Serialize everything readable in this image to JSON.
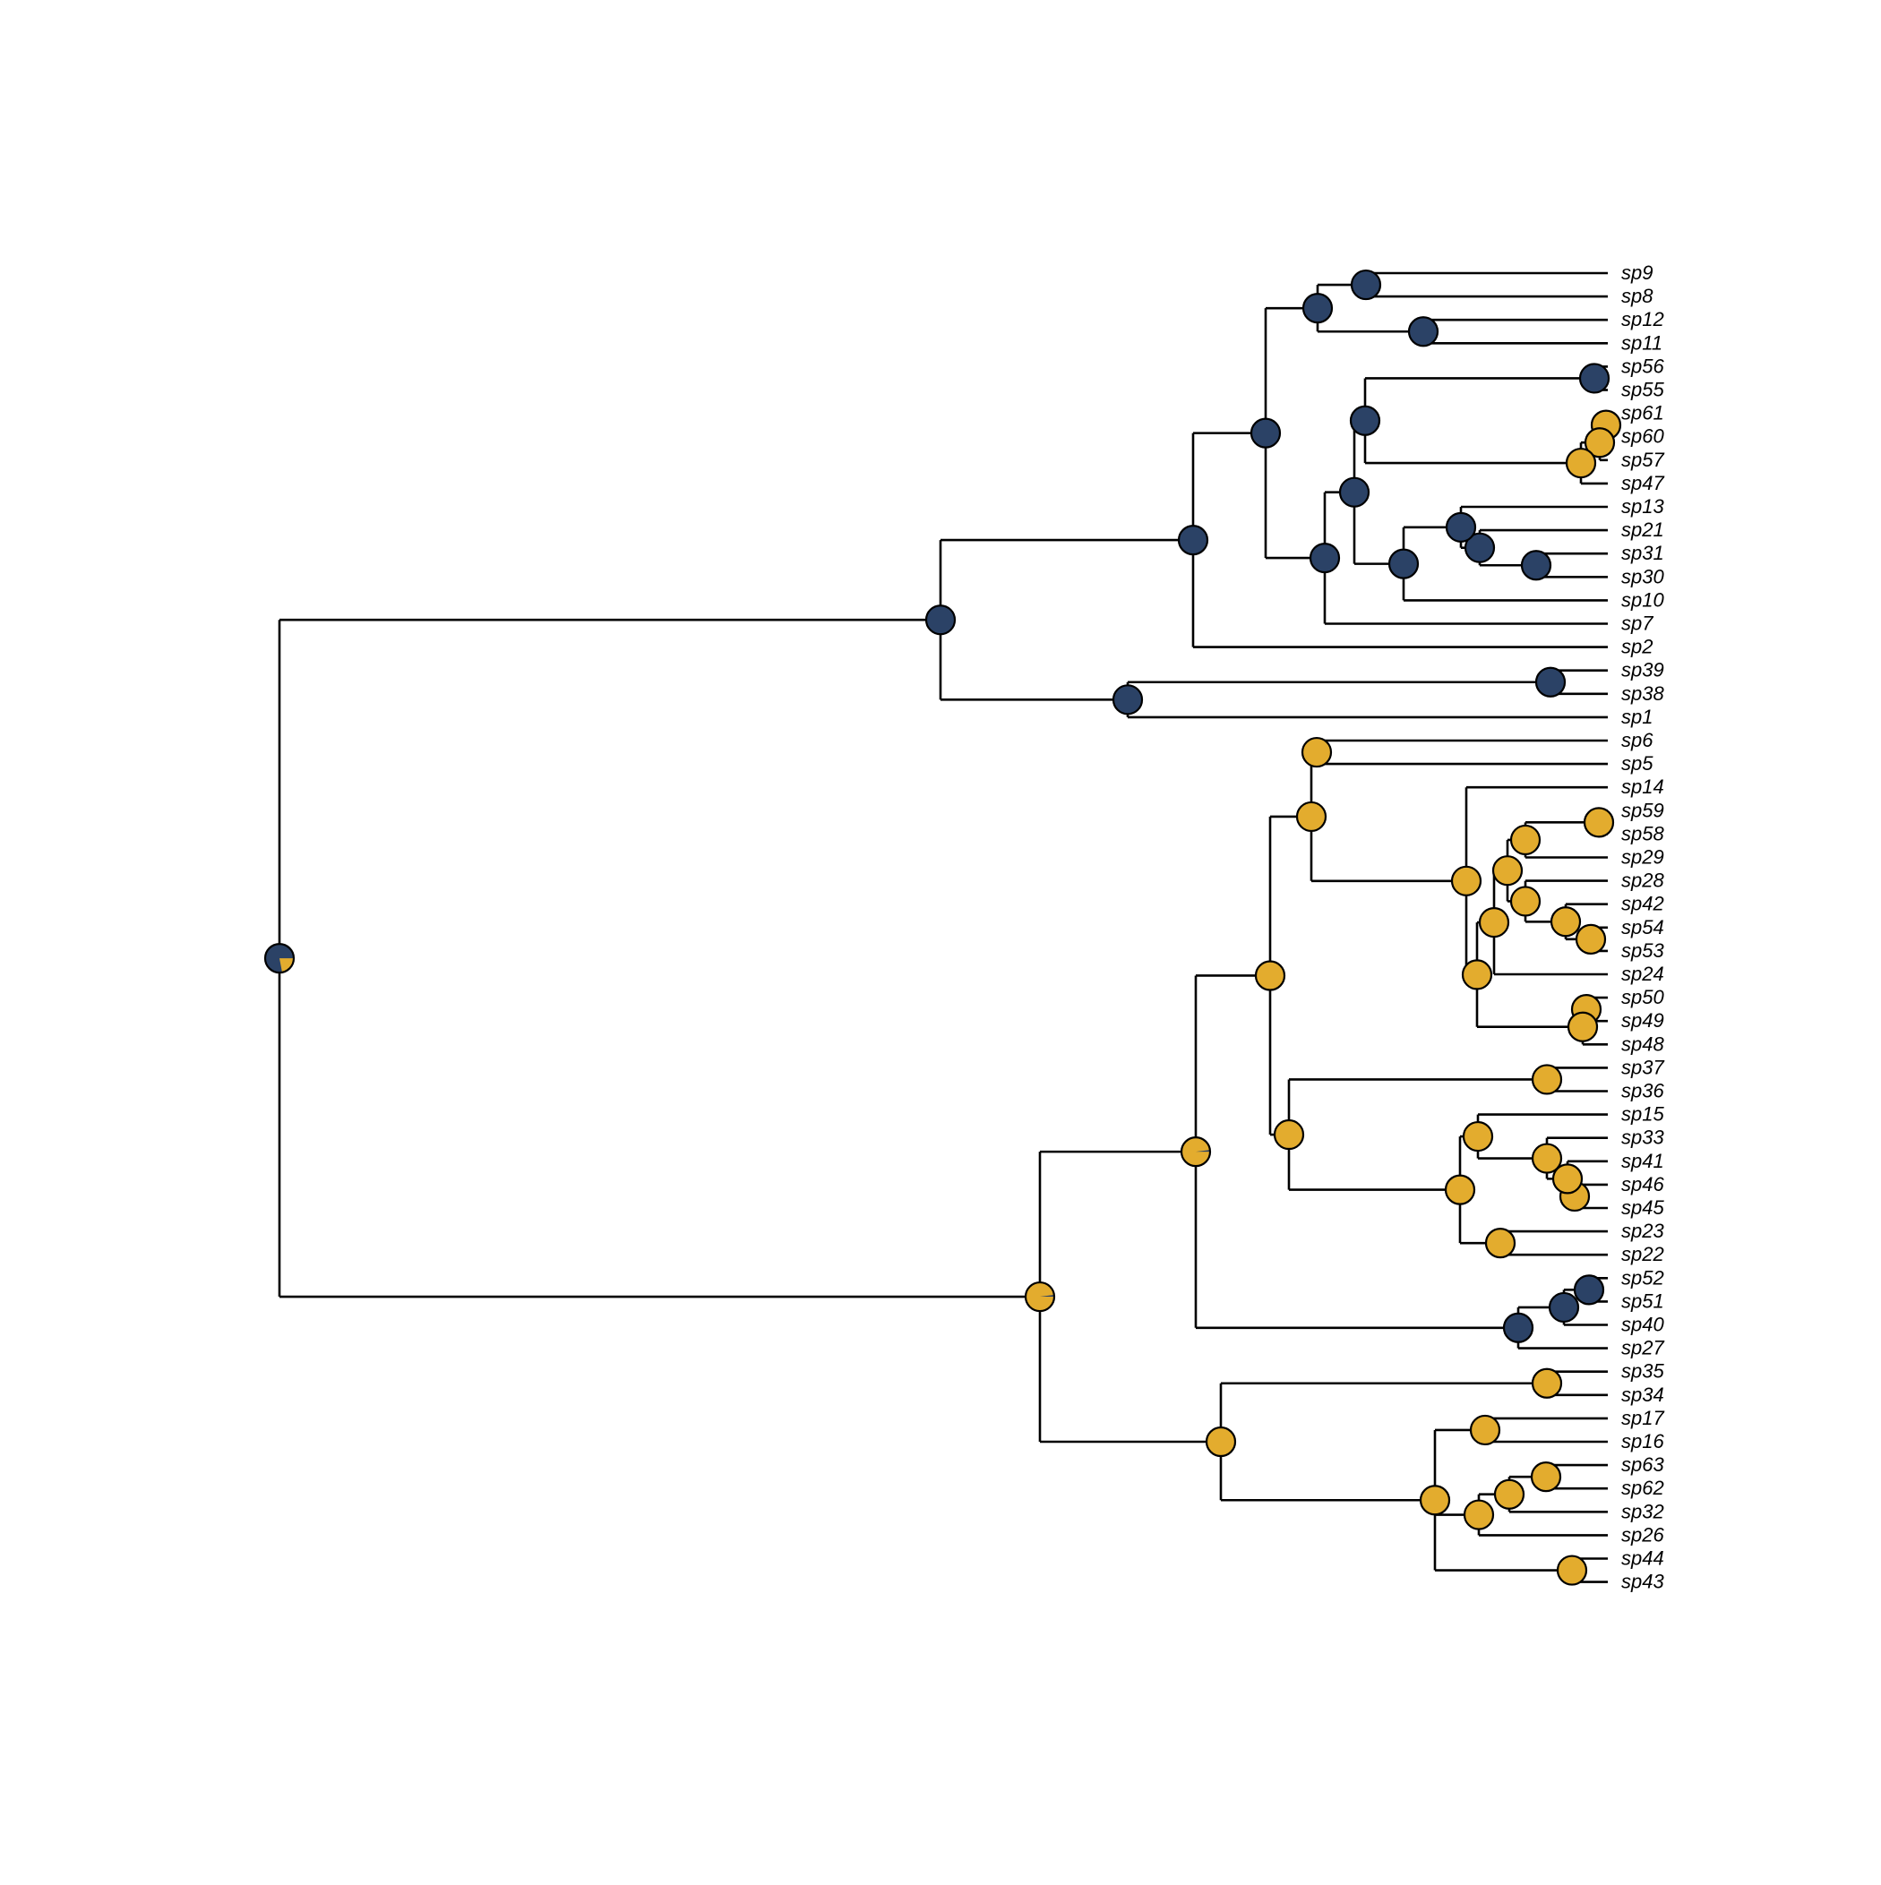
{
  "colors": {
    "state_a": "#2b4266",
    "state_b": "#e3ac2e",
    "line": "#000000"
  },
  "tip_order": [
    "sp9",
    "sp8",
    "sp12",
    "sp11",
    "sp56",
    "sp55",
    "sp61",
    "sp60",
    "sp57",
    "sp47",
    "sp13",
    "sp21",
    "sp31",
    "sp30",
    "sp10",
    "sp7",
    "sp2",
    "sp39",
    "sp38",
    "sp1",
    "sp6",
    "sp5",
    "sp14",
    "sp59",
    "sp58",
    "sp29",
    "sp28",
    "sp42",
    "sp54",
    "sp53",
    "sp24",
    "sp50",
    "sp49",
    "sp48",
    "sp37",
    "sp36",
    "sp15",
    "sp33",
    "sp41",
    "sp46",
    "sp45",
    "sp23",
    "sp22",
    "sp52",
    "sp51",
    "sp40",
    "sp27",
    "sp35",
    "sp34",
    "sp17",
    "sp16",
    "sp63",
    "sp62",
    "sp32",
    "sp26",
    "sp44",
    "sp43"
  ],
  "tree": {
    "n": "root",
    "p": 0.78,
    "c": [
      {
        "n": "A",
        "p": 1.0,
        "c": [
          {
            "n": "A1",
            "p": 1.0,
            "c": [
              {
                "n": "A11",
                "p": 1.0,
                "c": [
                  {
                    "n": "A111",
                    "p": 1.0,
                    "c": [
                      {
                        "n": "A1111",
                        "p": 1.0,
                        "c": [
                          {
                            "t": "sp9"
                          },
                          {
                            "t": "sp8"
                          }
                        ]
                      },
                      {
                        "n": "A1112",
                        "p": 1.0,
                        "c": [
                          {
                            "t": "sp12"
                          },
                          {
                            "t": "sp11"
                          }
                        ]
                      }
                    ]
                  },
                  {
                    "n": "A112",
                    "p": 1.0,
                    "c": [
                      {
                        "n": "A1121",
                        "p": 1.0,
                        "c": [
                          {
                            "n": "A11211",
                            "p": 1.0,
                            "c": [
                              {
                                "n": "A112111",
                                "p": 1.0,
                                "c": [
                                  {
                                    "t": "sp56"
                                  },
                                  {
                                    "t": "sp55"
                                  }
                                ]
                              },
                              {
                                "n": "A112112",
                                "p": 0.0,
                                "c": [
                                  {
                                    "n": "A1121121",
                                    "p": 0.0,
                                    "c": [
                                      {
                                        "n": "A11211211",
                                        "p": 0.0,
                                        "c": [
                                          {
                                            "t": "sp61"
                                          },
                                          {
                                            "t": "sp60"
                                          }
                                        ]
                                      },
                                      {
                                        "t": "sp57"
                                      }
                                    ]
                                  },
                                  {
                                    "t": "sp47"
                                  }
                                ]
                              }
                            ]
                          },
                          {
                            "n": "A11212",
                            "p": 1.0,
                            "c": [
                              {
                                "n": "A112121",
                                "p": 1.0,
                                "c": [
                                  {
                                    "t": "sp13"
                                  },
                                  {
                                    "n": "A1121212",
                                    "p": 1.0,
                                    "c": [
                                      {
                                        "t": "sp21"
                                      },
                                      {
                                        "n": "A11212122",
                                        "p": 1.0,
                                        "c": [
                                          {
                                            "t": "sp31"
                                          },
                                          {
                                            "t": "sp30"
                                          }
                                        ]
                                      }
                                    ]
                                  }
                                ]
                              },
                              {
                                "t": "sp10"
                              }
                            ]
                          }
                        ]
                      },
                      {
                        "t": "sp7"
                      }
                    ]
                  }
                ]
              },
              {
                "t": "sp2"
              }
            ]
          },
          {
            "n": "A2",
            "p": 1.0,
            "c": [
              {
                "n": "A21",
                "p": 1.0,
                "c": [
                  {
                    "t": "sp39"
                  },
                  {
                    "t": "sp38"
                  }
                ]
              },
              {
                "t": "sp1"
              }
            ]
          }
        ]
      },
      {
        "n": "B",
        "p": 0.02,
        "c": [
          {
            "n": "B1",
            "p": 0.02,
            "c": [
              {
                "n": "B11",
                "p": 0.0,
                "c": [
                  {
                    "n": "B111",
                    "p": 0.0,
                    "c": [
                      {
                        "n": "B1111",
                        "p": 0.0,
                        "c": [
                          {
                            "t": "sp6"
                          },
                          {
                            "t": "sp5"
                          }
                        ]
                      },
                      {
                        "n": "B1112",
                        "p": 0.0,
                        "c": [
                          {
                            "t": "sp14"
                          },
                          {
                            "n": "B11122",
                            "p": 0.0,
                            "c": [
                              {
                                "n": "B111221",
                                "p": 0.0,
                                "c": [
                                  {
                                    "n": "B1112211",
                                    "p": 0.0,
                                    "c": [
                                      {
                                        "n": "B11122111",
                                        "p": 0.0,
                                        "c": [
                                          {
                                            "n": "B111221111",
                                            "p": 0.0,
                                            "c": [
                                              {
                                                "t": "sp59"
                                              },
                                              {
                                                "t": "sp58"
                                              }
                                            ]
                                          },
                                          {
                                            "t": "sp29"
                                          }
                                        ]
                                      },
                                      {
                                        "n": "B11122112",
                                        "p": 0.0,
                                        "c": [
                                          {
                                            "t": "sp28"
                                          },
                                          {
                                            "n": "B111221122",
                                            "p": 0.0,
                                            "c": [
                                              {
                                                "t": "sp42"
                                              },
                                              {
                                                "n": "B1112211222",
                                                "p": 0.0,
                                                "c": [
                                                  {
                                                    "t": "sp54"
                                                  },
                                                  {
                                                    "t": "sp53"
                                                  }
                                                ]
                                              }
                                            ]
                                          }
                                        ]
                                      }
                                    ]
                                  },
                                  {
                                    "t": "sp24"
                                  }
                                ]
                              },
                              {
                                "n": "B111222",
                                "p": 0.0,
                                "c": [
                                  {
                                    "n": "B1112221",
                                    "p": 0.0,
                                    "c": [
                                      {
                                        "t": "sp50"
                                      },
                                      {
                                        "t": "sp49"
                                      }
                                    ]
                                  },
                                  {
                                    "t": "sp48"
                                  }
                                ]
                              }
                            ]
                          }
                        ]
                      }
                    ]
                  },
                  {
                    "n": "B112",
                    "p": 0.0,
                    "c": [
                      {
                        "n": "B1121",
                        "p": 0.0,
                        "c": [
                          {
                            "t": "sp37"
                          },
                          {
                            "t": "sp36"
                          }
                        ]
                      },
                      {
                        "n": "B1122",
                        "p": 0.0,
                        "c": [
                          {
                            "n": "B11221",
                            "p": 0.0,
                            "c": [
                              {
                                "t": "sp15"
                              },
                              {
                                "n": "B112212",
                                "p": 0.0,
                                "c": [
                                  {
                                    "t": "sp33"
                                  },
                                  {
                                    "n": "B1122122",
                                    "p": 0.0,
                                    "c": [
                                      {
                                        "t": "sp41"
                                      },
                                      {
                                        "n": "B11221222",
                                        "p": 0.0,
                                        "c": [
                                          {
                                            "t": "sp46"
                                          },
                                          {
                                            "t": "sp45"
                                          }
                                        ]
                                      }
                                    ]
                                  }
                                ]
                              }
                            ]
                          },
                          {
                            "n": "B11222",
                            "p": 0.0,
                            "c": [
                              {
                                "t": "sp23"
                              },
                              {
                                "t": "sp22"
                              }
                            ]
                          }
                        ]
                      }
                    ]
                  }
                ]
              },
              {
                "n": "B12",
                "p": 1.0,
                "c": [
                  {
                    "n": "B121",
                    "p": 1.0,
                    "c": [
                      {
                        "n": "B1211",
                        "p": 1.0,
                        "c": [
                          {
                            "t": "sp52"
                          },
                          {
                            "t": "sp51"
                          }
                        ]
                      },
                      {
                        "t": "sp40"
                      }
                    ]
                  },
                  {
                    "t": "sp27"
                  }
                ]
              }
            ]
          },
          {
            "n": "B2",
            "p": 0.0,
            "c": [
              {
                "n": "B21",
                "p": 0.0,
                "c": [
                  {
                    "t": "sp35"
                  },
                  {
                    "t": "sp34"
                  }
                ]
              },
              {
                "n": "B22",
                "p": 0.0,
                "c": [
                  {
                    "n": "B221",
                    "p": 0.0,
                    "c": [
                      {
                        "t": "sp17"
                      },
                      {
                        "t": "sp16"
                      }
                    ]
                  },
                  {
                    "n": "B222",
                    "p": 0.0,
                    "c": [
                      {
                        "n": "B2221",
                        "p": 0.0,
                        "c": [
                          {
                            "n": "B22211",
                            "p": 0.0,
                            "c": [
                              {
                                "t": "sp63"
                              },
                              {
                                "t": "sp62"
                              }
                            ]
                          },
                          {
                            "t": "sp32"
                          }
                        ]
                      },
                      {
                        "t": "sp26"
                      }
                    ]
                  },
                  {
                    "n": "B223",
                    "p": 0.0,
                    "c": [
                      {
                        "t": "sp44"
                      },
                      {
                        "t": "sp43"
                      }
                    ]
                  }
                ]
              }
            ]
          }
        ]
      }
    ]
  }
}
